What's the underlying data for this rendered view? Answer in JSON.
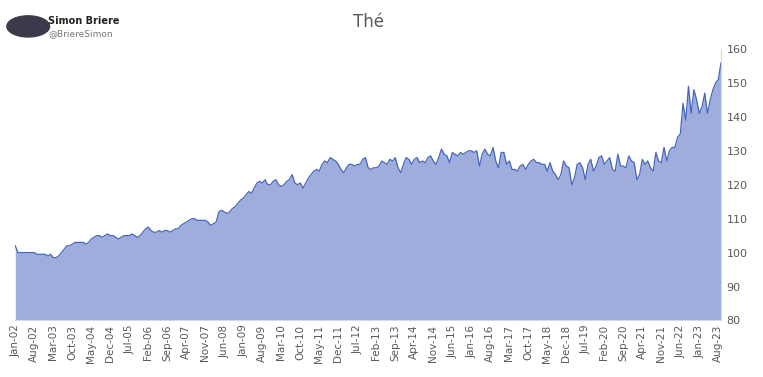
{
  "chart_data": {
    "type": "area",
    "title": "Thé",
    "annotations": [
      "Simon Briere",
      "@BriereSimon"
    ],
    "color": "#8d9fd6",
    "categories": [
      "Jan-02",
      null,
      null,
      null,
      null,
      null,
      null,
      "Aug-02",
      null,
      null,
      null,
      null,
      null,
      null,
      "Mar-03",
      null,
      null,
      null,
      null,
      null,
      null,
      "Oct-03",
      null,
      null,
      null,
      null,
      null,
      null,
      "May-04",
      null,
      null,
      null,
      null,
      null,
      null,
      "Dec-04",
      null,
      null,
      null,
      null,
      null,
      null,
      "Jul-05",
      null,
      null,
      null,
      null,
      null,
      null,
      "Feb-06",
      null,
      null,
      null,
      null,
      null,
      null,
      "Sep-06",
      null,
      null,
      null,
      null,
      null,
      null,
      "Apr-07",
      null,
      null,
      null,
      null,
      null,
      null,
      "Nov-07",
      null,
      null,
      null,
      null,
      null,
      null,
      "Jun-08",
      null,
      null,
      null,
      null,
      null,
      null,
      "Jan-09",
      null,
      null,
      null,
      null,
      null,
      null,
      "Aug-09",
      null,
      null,
      null,
      null,
      null,
      null,
      "Mar-10",
      null,
      null,
      null,
      null,
      null,
      null,
      "Oct-10",
      null,
      null,
      null,
      null,
      null,
      null,
      "May-11",
      null,
      null,
      null,
      null,
      null,
      null,
      "Dec-11",
      null,
      null,
      null,
      null,
      null,
      null,
      "Jul-12",
      null,
      null,
      null,
      null,
      null,
      null,
      "Feb-13",
      null,
      null,
      null,
      null,
      null,
      null,
      "Sep-13",
      null,
      null,
      null,
      null,
      null,
      null,
      "Apr-14",
      null,
      null,
      null,
      null,
      null,
      null,
      "Nov-14",
      null,
      null,
      null,
      null,
      null,
      null,
      "Jun-15",
      null,
      null,
      null,
      null,
      null,
      null,
      "Jan-16",
      null,
      null,
      null,
      null,
      null,
      null,
      "Aug-16",
      null,
      null,
      null,
      null,
      null,
      null,
      "Mar-17",
      null,
      null,
      null,
      null,
      null,
      null,
      "Oct-17",
      null,
      null,
      null,
      null,
      null,
      null,
      "May-18",
      null,
      null,
      null,
      null,
      null,
      null,
      "Dec-18",
      null,
      null,
      null,
      null,
      null,
      null,
      "Jul-19",
      null,
      null,
      null,
      null,
      null,
      null,
      "Feb-20",
      null,
      null,
      null,
      null,
      null,
      null,
      "Sep-20",
      null,
      null,
      null,
      null,
      null,
      null,
      "Apr-21",
      null,
      null,
      null,
      null,
      null,
      null,
      "Nov-21",
      null,
      null,
      null,
      null,
      null,
      null,
      "Jun-22",
      null,
      null,
      null,
      null,
      null,
      null,
      "Jan-23",
      null,
      null,
      null,
      null,
      null,
      null,
      "Aug-23",
      null
    ],
    "values": [
      102,
      100,
      100,
      100,
      100,
      100,
      100,
      100,
      99.5,
      99.5,
      99.5,
      99.5,
      99,
      99.5,
      98.5,
      98.5,
      99,
      100,
      101,
      102,
      102,
      102.5,
      103,
      103,
      103,
      103,
      102.5,
      103,
      104,
      104.5,
      105,
      105,
      104.5,
      105,
      105.5,
      105,
      105,
      104.5,
      104,
      104.5,
      105,
      105,
      105,
      105.5,
      105,
      104.5,
      105,
      106,
      107,
      107.5,
      106.5,
      106,
      106,
      106.5,
      106,
      106.5,
      106.5,
      106,
      106.5,
      107,
      107,
      108,
      108.5,
      109,
      109.5,
      110,
      110,
      109.5,
      109.5,
      109.5,
      109.5,
      109,
      108,
      108.5,
      109,
      112,
      112.5,
      112,
      111.5,
      112,
      113,
      113.5,
      114.5,
      115.5,
      116,
      117,
      118,
      117.5,
      119,
      120.5,
      121,
      120.5,
      121.5,
      120,
      120,
      121,
      121.5,
      120,
      119.5,
      120,
      121,
      121.5,
      123,
      120.5,
      120,
      120.5,
      119,
      120.5,
      122,
      123,
      124,
      124.5,
      124,
      126,
      127,
      126.5,
      128,
      127.5,
      127,
      126,
      124.5,
      123.5,
      125,
      126,
      126,
      125.5,
      126,
      126,
      127.5,
      128,
      125,
      124.5,
      125,
      125,
      125.5,
      127,
      126.5,
      126,
      127.5,
      127,
      128,
      125,
      123.5,
      126,
      128,
      127.5,
      126,
      127.5,
      128,
      126.5,
      127,
      126.5,
      128,
      128.5,
      127,
      126,
      128,
      130.5,
      129,
      128.5,
      126.5,
      129.5,
      129,
      128.5,
      129.5,
      129,
      129.5,
      130,
      130,
      129.5,
      130,
      125.5,
      129,
      130.5,
      129,
      128.5,
      131,
      127,
      125,
      129.5,
      129.5,
      126,
      127,
      124.5,
      124.5,
      124,
      125.5,
      126,
      124.5,
      126,
      127,
      127.5,
      126.5,
      126.5,
      126,
      126,
      124,
      126.5,
      124,
      123,
      121.5,
      123,
      127,
      125.5,
      125,
      120,
      122,
      126,
      126.5,
      125,
      121.5,
      126,
      127.5,
      124,
      125.5,
      128,
      128.5,
      126,
      127,
      128,
      124.5,
      124,
      129,
      125.5,
      125.5,
      125,
      128.5,
      127,
      126.5,
      121.5,
      123,
      127.5,
      126,
      127,
      125,
      124,
      129.5,
      127,
      126.5,
      131,
      127,
      130,
      131,
      131,
      134,
      135,
      144,
      139,
      149,
      141,
      148,
      145,
      141,
      143,
      147,
      141,
      145,
      148,
      150,
      151,
      156
    ],
    "ylim": [
      80,
      160
    ],
    "yticks": [
      80,
      90,
      100,
      110,
      120,
      130,
      140,
      150,
      160
    ],
    "grid": false
  }
}
